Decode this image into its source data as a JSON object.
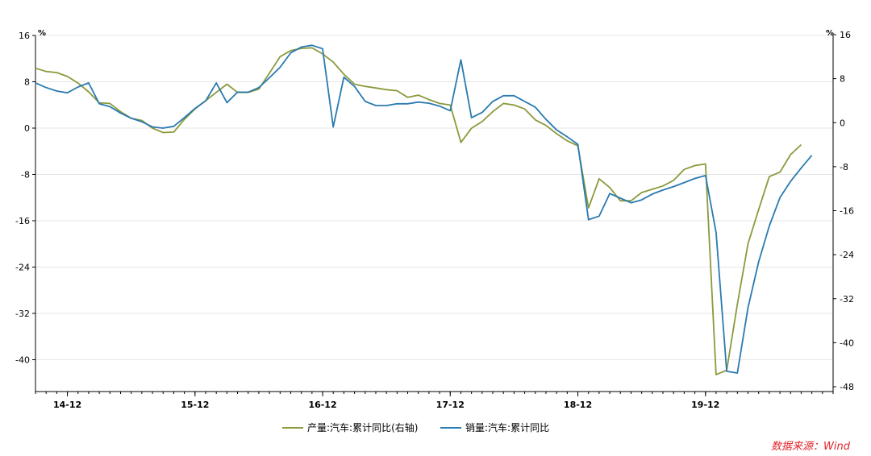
{
  "chart_data": {
    "type": "line",
    "title": "",
    "xlabel": "",
    "ylabel_left_unit": "%",
    "ylabel_right_unit": "%",
    "ylim_left": [
      -48,
      16
    ],
    "ylim_right": [
      -48,
      16
    ],
    "yticks_left": [
      16,
      8,
      0,
      -8,
      -16,
      -24,
      -32,
      -40
    ],
    "yticks_right": [
      16,
      8,
      0,
      -8,
      -16,
      -24,
      -32,
      -40,
      -48
    ],
    "yticks_left_labels": [
      "16",
      "8",
      "0",
      "-8",
      "-16",
      "-24",
      "-32",
      "-40"
    ],
    "yticks_right_labels": [
      "16",
      "8",
      "0",
      "-8",
      "-16",
      "-24",
      "-32",
      "-40",
      "-48"
    ],
    "x_range": [
      "2014-09",
      "2020-12"
    ],
    "x_ticks": [
      {
        "date": "2014-12",
        "label": "14-12"
      },
      {
        "date": "2015-12",
        "label": "15-12"
      },
      {
        "date": "2016-12",
        "label": "16-12"
      },
      {
        "date": "2017-12",
        "label": "17-12"
      },
      {
        "date": "2018-12",
        "label": "18-12"
      },
      {
        "date": "2019-12",
        "label": "19-12"
      }
    ],
    "grid": true,
    "legend_position": "bottom-center",
    "source": "数据来源：Wind",
    "series": [
      {
        "name": "产量:汽车:累计同比(右轴)",
        "axis": "right",
        "color": "#8a9a3c",
        "points": [
          [
            "2014-09",
            9.9
          ],
          [
            "2014-10",
            9.3
          ],
          [
            "2014-11",
            9.1
          ],
          [
            "2014-12",
            8.4
          ],
          [
            "2015-01",
            7.2
          ],
          [
            "2015-02",
            5.6
          ],
          [
            "2015-03",
            3.6
          ],
          [
            "2015-04",
            3.5
          ],
          [
            "2015-05",
            2.0
          ],
          [
            "2015-06",
            0.8
          ],
          [
            "2015-07",
            0.4
          ],
          [
            "2015-08",
            -1.0
          ],
          [
            "2015-09",
            -1.8
          ],
          [
            "2015-10",
            -1.7
          ],
          [
            "2015-11",
            0.6
          ],
          [
            "2015-12",
            2.5
          ],
          [
            "2016-01",
            4.0
          ],
          [
            "2016-02",
            5.5
          ],
          [
            "2016-03",
            7.0
          ],
          [
            "2016-04",
            5.5
          ],
          [
            "2016-05",
            5.5
          ],
          [
            "2016-06",
            6.1
          ],
          [
            "2016-07",
            9.0
          ],
          [
            "2016-08",
            12.0
          ],
          [
            "2016-09",
            13.1
          ],
          [
            "2016-10",
            13.5
          ],
          [
            "2016-11",
            13.6
          ],
          [
            "2016-12",
            12.5
          ],
          [
            "2017-01",
            11.0
          ],
          [
            "2017-02",
            8.8
          ],
          [
            "2017-03",
            7.0
          ],
          [
            "2017-04",
            6.6
          ],
          [
            "2017-05",
            6.3
          ],
          [
            "2017-06",
            6.0
          ],
          [
            "2017-07",
            5.8
          ],
          [
            "2017-08",
            4.6
          ],
          [
            "2017-09",
            5.0
          ],
          [
            "2017-10",
            4.2
          ],
          [
            "2017-11",
            3.5
          ],
          [
            "2017-12",
            3.2
          ],
          [
            "2018-01",
            -3.6
          ],
          [
            "2018-02",
            -1.0
          ],
          [
            "2018-03",
            0.2
          ],
          [
            "2018-04",
            2.0
          ],
          [
            "2018-05",
            3.5
          ],
          [
            "2018-06",
            3.2
          ],
          [
            "2018-07",
            2.5
          ],
          [
            "2018-08",
            0.5
          ],
          [
            "2018-09",
            -0.5
          ],
          [
            "2018-10",
            -2.0
          ],
          [
            "2018-11",
            -3.3
          ],
          [
            "2018-12",
            -4.2
          ],
          [
            "2019-01",
            -15.5
          ],
          [
            "2019-02",
            -10.2
          ],
          [
            "2019-03",
            -11.8
          ],
          [
            "2019-04",
            -14.2
          ],
          [
            "2019-05",
            -14.2
          ],
          [
            "2019-06",
            -12.7
          ],
          [
            "2019-07",
            -12.1
          ],
          [
            "2019-08",
            -11.5
          ],
          [
            "2019-09",
            -10.5
          ],
          [
            "2019-10",
            -8.5
          ],
          [
            "2019-11",
            -7.8
          ],
          [
            "2019-12",
            -7.5
          ],
          [
            "2020-01",
            -45.8
          ],
          [
            "2020-02",
            -45.0
          ],
          [
            "2020-03",
            -33.0
          ],
          [
            "2020-04",
            -22.0
          ],
          [
            "2020-05",
            -15.8
          ],
          [
            "2020-06",
            -9.8
          ],
          [
            "2020-07",
            -9.0
          ],
          [
            "2020-08",
            -5.8
          ],
          [
            "2020-09",
            -4.0
          ]
        ]
      },
      {
        "name": "销量:汽车:累计同比",
        "axis": "left",
        "color": "#2a7ab0",
        "points": [
          [
            "2014-09",
            7.8
          ],
          [
            "2014-10",
            7.0
          ],
          [
            "2014-11",
            6.4
          ],
          [
            "2014-12",
            6.1
          ],
          [
            "2015-01",
            7.1
          ],
          [
            "2015-02",
            7.8
          ],
          [
            "2015-03",
            4.2
          ],
          [
            "2015-04",
            3.7
          ],
          [
            "2015-05",
            2.6
          ],
          [
            "2015-06",
            1.7
          ],
          [
            "2015-07",
            1.1
          ],
          [
            "2015-08",
            0.2
          ],
          [
            "2015-09",
            0.0
          ],
          [
            "2015-10",
            0.3
          ],
          [
            "2015-11",
            1.8
          ],
          [
            "2015-12",
            3.4
          ],
          [
            "2016-01",
            4.7
          ],
          [
            "2016-02",
            7.8
          ],
          [
            "2016-03",
            4.4
          ],
          [
            "2016-04",
            6.2
          ],
          [
            "2016-05",
            6.2
          ],
          [
            "2016-06",
            7.0
          ],
          [
            "2016-07",
            8.7
          ],
          [
            "2016-08",
            10.5
          ],
          [
            "2016-09",
            13.0
          ],
          [
            "2016-10",
            14.0
          ],
          [
            "2016-11",
            14.3
          ],
          [
            "2016-12",
            13.7
          ],
          [
            "2017-01",
            0.2
          ],
          [
            "2017-02",
            8.8
          ],
          [
            "2017-03",
            7.2
          ],
          [
            "2017-04",
            4.6
          ],
          [
            "2017-05",
            3.9
          ],
          [
            "2017-06",
            3.9
          ],
          [
            "2017-07",
            4.2
          ],
          [
            "2017-08",
            4.2
          ],
          [
            "2017-09",
            4.5
          ],
          [
            "2017-10",
            4.3
          ],
          [
            "2017-11",
            3.8
          ],
          [
            "2017-12",
            3.0
          ],
          [
            "2018-01",
            11.8
          ],
          [
            "2018-02",
            1.8
          ],
          [
            "2018-03",
            2.7
          ],
          [
            "2018-04",
            4.6
          ],
          [
            "2018-05",
            5.6
          ],
          [
            "2018-06",
            5.6
          ],
          [
            "2018-07",
            4.6
          ],
          [
            "2018-08",
            3.6
          ],
          [
            "2018-09",
            1.5
          ],
          [
            "2018-10",
            -0.3
          ],
          [
            "2018-11",
            -1.5
          ],
          [
            "2018-12",
            -2.8
          ],
          [
            "2019-01",
            -15.8
          ],
          [
            "2019-02",
            -15.2
          ],
          [
            "2019-03",
            -11.3
          ],
          [
            "2019-04",
            -12.1
          ],
          [
            "2019-05",
            -12.9
          ],
          [
            "2019-06",
            -12.4
          ],
          [
            "2019-07",
            -11.4
          ],
          [
            "2019-08",
            -10.7
          ],
          [
            "2019-09",
            -10.1
          ],
          [
            "2019-10",
            -9.4
          ],
          [
            "2019-11",
            -8.7
          ],
          [
            "2019-12",
            -8.2
          ],
          [
            "2020-01",
            -18.0
          ],
          [
            "2020-02",
            -42.0
          ],
          [
            "2020-03",
            -42.3
          ],
          [
            "2020-04",
            -31.0
          ],
          [
            "2020-05",
            -23.1
          ],
          [
            "2020-06",
            -16.9
          ],
          [
            "2020-07",
            -12.0
          ],
          [
            "2020-08",
            -9.2
          ],
          [
            "2020-09",
            -6.9
          ],
          [
            "2020-10",
            -4.7
          ]
        ]
      }
    ]
  }
}
